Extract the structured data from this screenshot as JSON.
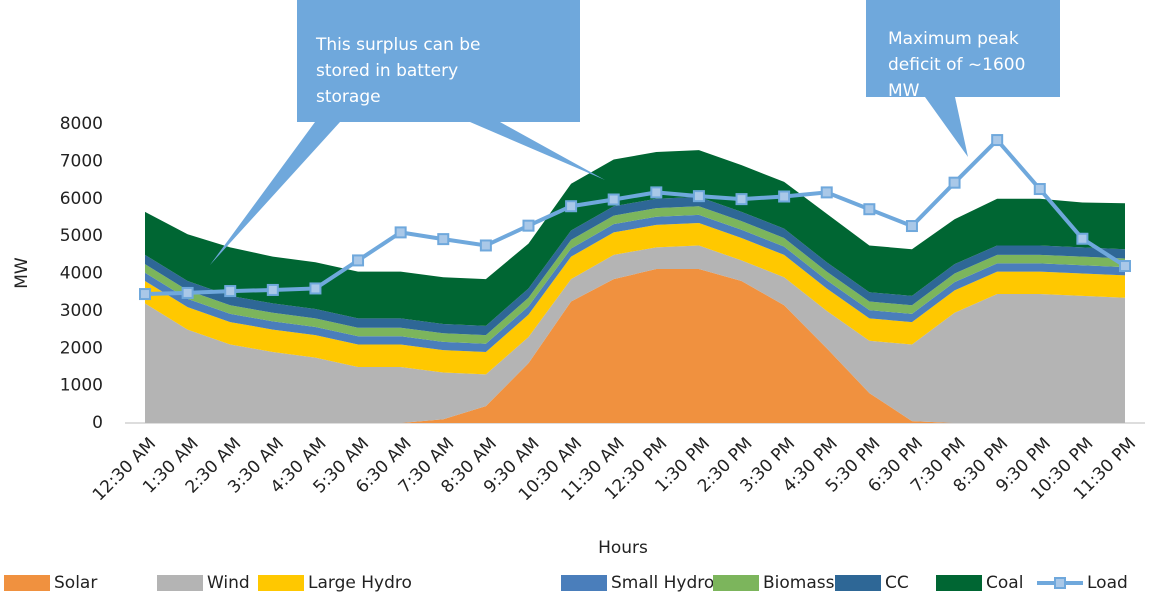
{
  "chart_data": {
    "type": "area",
    "x_label": "Hours",
    "y_label": "MW",
    "categories": [
      "12:30 AM",
      "1:30 AM",
      "2:30 AM",
      "3:30 AM",
      "4:30 AM",
      "5:30 AM",
      "6:30 AM",
      "7:30 AM",
      "8:30 AM",
      "9:30 AM",
      "10:30 AM",
      "11:30 AM",
      "12:30 PM",
      "1:30 PM",
      "2:30 PM",
      "3:30 PM",
      "4:30 PM",
      "5:30 PM",
      "6:30 PM",
      "7:30 PM",
      "8:30 PM",
      "9:30 PM",
      "10:30 PM",
      "11:30 PM"
    ],
    "ylim": [
      0,
      8000
    ],
    "yticks": [
      0,
      1000,
      2000,
      3000,
      4000,
      5000,
      6000,
      7000,
      8000
    ],
    "series": [
      {
        "name": "Solar",
        "type": "area",
        "color": "#f0913f",
        "values": [
          0,
          0,
          0,
          0,
          0,
          0,
          0,
          100,
          450,
          1600,
          3250,
          3850,
          4120,
          4120,
          3800,
          3150,
          2000,
          800,
          50,
          0,
          0,
          0,
          0,
          0
        ]
      },
      {
        "name": "Wind",
        "type": "area",
        "color": "#b4b4b4",
        "values": [
          3200,
          2500,
          2100,
          1900,
          1750,
          1500,
          1500,
          1250,
          850,
          700,
          600,
          650,
          580,
          630,
          550,
          750,
          1000,
          1400,
          2050,
          2950,
          3450,
          3450,
          3400,
          3350
        ]
      },
      {
        "name": "Large Hydro",
        "type": "area",
        "color": "#ffc800",
        "values": [
          600,
          600,
          600,
          600,
          600,
          600,
          600,
          600,
          600,
          600,
          600,
          600,
          600,
          600,
          600,
          600,
          600,
          600,
          600,
          600,
          600,
          600,
          600,
          600
        ]
      },
      {
        "name": "Small Hydro",
        "type": "area",
        "color": "#4a7ebb",
        "values": [
          220,
          220,
          220,
          220,
          220,
          220,
          220,
          220,
          220,
          220,
          220,
          220,
          220,
          220,
          220,
          220,
          220,
          220,
          220,
          220,
          220,
          220,
          220,
          220
        ]
      },
      {
        "name": "Biomass",
        "type": "area",
        "color": "#7cb55c",
        "values": [
          230,
          230,
          230,
          230,
          230,
          230,
          230,
          230,
          230,
          230,
          230,
          230,
          230,
          230,
          230,
          230,
          230,
          230,
          230,
          230,
          230,
          230,
          230,
          230
        ]
      },
      {
        "name": "CC",
        "type": "area",
        "color": "#2e6796",
        "values": [
          250,
          250,
          250,
          250,
          250,
          250,
          250,
          250,
          250,
          250,
          250,
          250,
          250,
          250,
          250,
          250,
          250,
          250,
          250,
          250,
          250,
          250,
          250,
          250
        ]
      },
      {
        "name": "Coal",
        "type": "area",
        "color": "#006633",
        "values": [
          1150,
          1250,
          1300,
          1250,
          1250,
          1250,
          1250,
          1250,
          1250,
          1200,
          1250,
          1250,
          1250,
          1250,
          1250,
          1250,
          1300,
          1250,
          1250,
          1200,
          1250,
          1250,
          1200,
          1230
        ]
      },
      {
        "name": "Load",
        "type": "line",
        "color": "#6fa8dc",
        "values": [
          3450,
          3480,
          3530,
          3560,
          3600,
          4350,
          5100,
          4920,
          4750,
          5280,
          5800,
          5980,
          6170,
          6070,
          5990,
          6060,
          6170,
          5720,
          5270,
          6430,
          7570,
          6260,
          4930,
          4200
        ]
      }
    ],
    "annotations": [
      {
        "lines": [
          "This surplus can be",
          "stored in battery",
          "storage"
        ]
      },
      {
        "lines": [
          "Maximum peak",
          "deficit of ~1600",
          "MW"
        ]
      }
    ]
  }
}
